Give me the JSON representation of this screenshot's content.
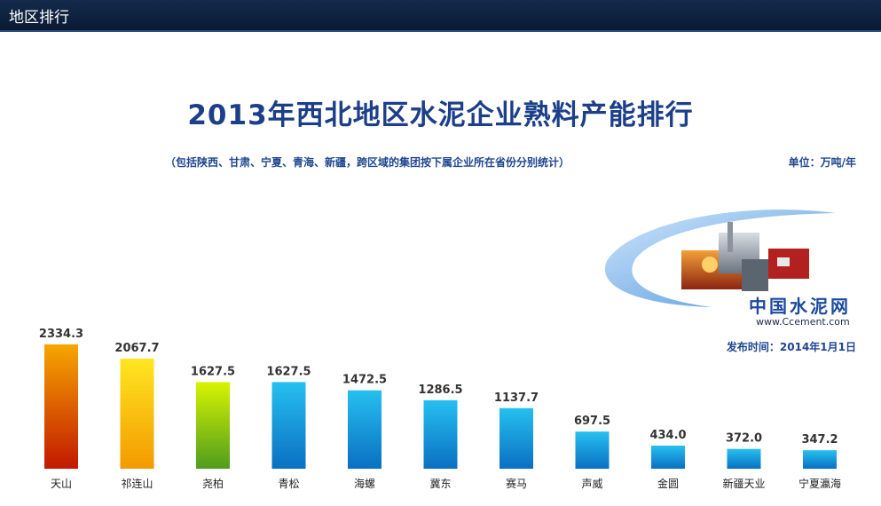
{
  "header": {
    "title": "地区排行"
  },
  "logo": {
    "name": "中国水泥网",
    "url": "www.Ccement.com"
  },
  "publish_date": "发布时间：2014年1月1日",
  "unit": "单位：万吨/年",
  "colors": {
    "bar_1": [
      "#f7a600",
      "#c21800"
    ],
    "bar_2": [
      "#ffe621",
      "#f39a00"
    ],
    "bar_3": [
      "#d8f400",
      "#4f9c1e"
    ],
    "bar_default": [
      "#26c0f0",
      "#0a6fc2"
    ]
  },
  "chart_data": {
    "type": "bar",
    "title": "2013年西北地区水泥企业熟料产能排行",
    "subtitle": "（包括陕西、甘肃、宁夏、青海、新疆，跨区域的集团按下属企业所在省份分别统计）",
    "categories": [
      "天山",
      "祁连山",
      "尧柏",
      "青松",
      "海螺",
      "冀东",
      "赛马",
      "声威",
      "金圆",
      "新疆天业",
      "宁夏瀛海"
    ],
    "values": [
      2334.3,
      2067.7,
      1627.5,
      1627.5,
      1472.5,
      1286.5,
      1137.7,
      697.5,
      434.0,
      372.0,
      347.2
    ],
    "value_labels": [
      "2334.3",
      "2067.7",
      "1627.5",
      "1627.5",
      "1472.5",
      "1286.5",
      "1137.7",
      "697.5",
      "434.0",
      "372.0",
      "347.2"
    ],
    "xlabel": "",
    "ylabel": "",
    "ylim": [
      0,
      2334.3
    ],
    "grid": false,
    "legend": "none"
  }
}
